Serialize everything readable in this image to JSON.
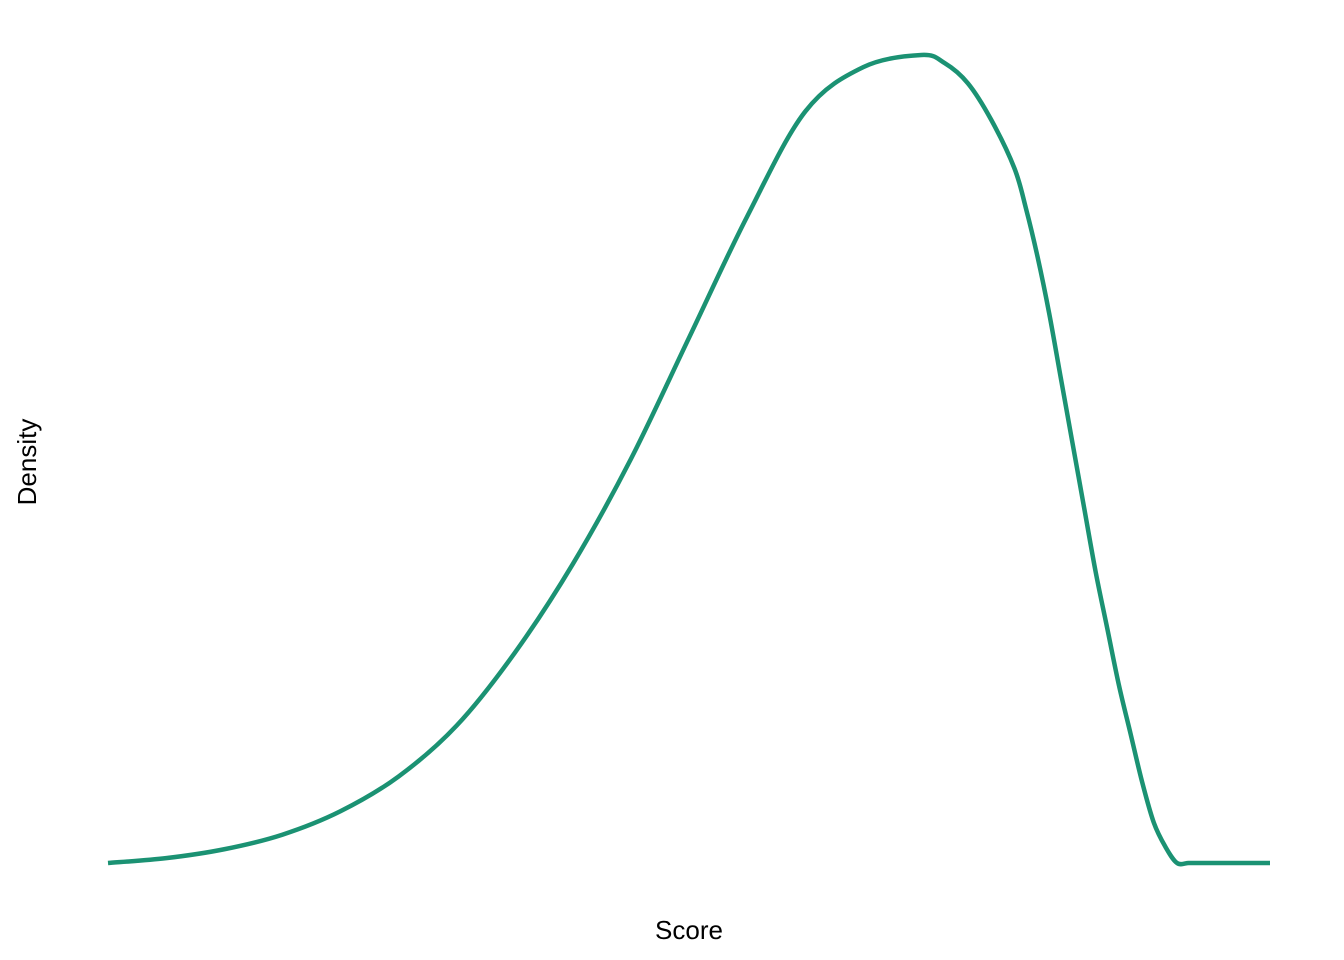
{
  "chart_data": {
    "type": "line",
    "title": "",
    "xlabel": "Score",
    "ylabel": "Density",
    "grid": false,
    "legend": "none",
    "axis_ticks_shown": false,
    "xlim": [
      0,
      1
    ],
    "ylim": [
      0,
      1
    ],
    "line_color": "#1b9273",
    "series": [
      {
        "x": [
          0.0,
          0.05,
          0.1,
          0.15,
          0.2,
          0.25,
          0.3,
          0.35,
          0.4,
          0.45,
          0.5,
          0.55,
          0.6,
          0.65,
          0.7,
          0.72,
          0.74,
          0.76,
          0.78,
          0.79,
          0.8,
          0.81,
          0.82,
          0.83,
          0.84,
          0.85,
          0.86,
          0.87,
          0.88,
          0.89,
          0.9,
          0.91,
          0.92,
          0.93,
          0.94,
          0.95,
          0.96,
          0.97,
          0.98,
          0.99,
          1.0
        ],
        "y": [
          0.0,
          0.006,
          0.017,
          0.035,
          0.064,
          0.107,
          0.17,
          0.26,
          0.37,
          0.5,
          0.65,
          0.8,
          0.93,
          0.985,
          1.0,
          0.99,
          0.965,
          0.92,
          0.86,
          0.81,
          0.75,
          0.68,
          0.6,
          0.52,
          0.44,
          0.36,
          0.29,
          0.22,
          0.16,
          0.1,
          0.05,
          0.02,
          0.0,
          0.0,
          0.0,
          0.0,
          0.0,
          0.0,
          0.0,
          0.0,
          0.0
        ]
      }
    ]
  }
}
